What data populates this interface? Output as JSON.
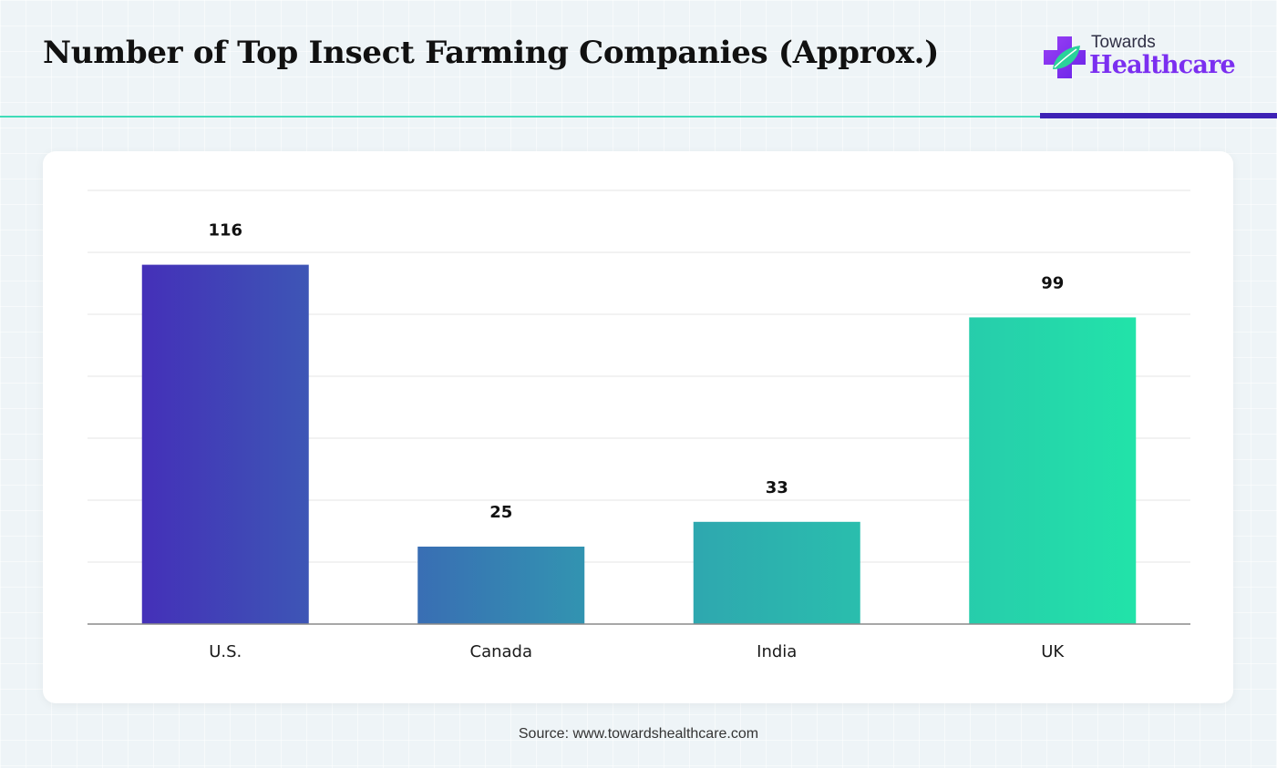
{
  "header": {
    "title": "Number of Top Insect Farming Companies (Approx.)"
  },
  "logo": {
    "icon": "medical-cross-leaf-icon",
    "small_text": "Towards",
    "big_text": "Healthcare"
  },
  "colors": {
    "teal_rule": "#3fdcb8",
    "purple_rule": "#3d22b5",
    "logo_purple": "#7b2ff0",
    "logo_green": "#2ad29a",
    "bar_gradient_start": "#4430b8",
    "bar_gradient_end": "#22e3a9",
    "gridline": "#e6e6e6",
    "axis": "#8a8a8a"
  },
  "chart_data": {
    "type": "bar",
    "categories": [
      "U.S.",
      "Canada",
      "India",
      "UK"
    ],
    "values": [
      116,
      25,
      33,
      99
    ],
    "value_labels": [
      "116",
      "25",
      "33",
      "99"
    ],
    "ylim": [
      0,
      140
    ],
    "grid": true,
    "gridline_interval": 20,
    "y_tick_labels_shown": false,
    "legend": "none"
  },
  "footer": {
    "source": "Source: www.towardshealthcare.com"
  }
}
